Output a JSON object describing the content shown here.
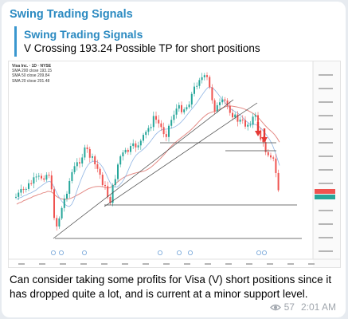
{
  "message": {
    "sender": "Swing Trading Signals",
    "reply": {
      "title": "Swing Trading Signals",
      "text": "V Crossing 193.24 Possible TP for short positions"
    },
    "text": "Can consider taking some profits for Visa (V) short positions since it has dropped quite a lot, and is current at a minor support level.",
    "views": "57",
    "time": "2:01 AM"
  },
  "chart_image": {
    "symbol_line": "Visa Inc. · 1D · NYSE",
    "legend_rows": [
      "SMA 200 close 193.15",
      "SMA 50 close 209.84",
      "SMA 20 close 201.48"
    ],
    "colors": {
      "up": "#26a69a",
      "down": "#ef5350",
      "sma_long": "#e48b86",
      "sma_short": "#8fb4e3",
      "arrow": "#e53935",
      "trendline": "#444444"
    }
  }
}
